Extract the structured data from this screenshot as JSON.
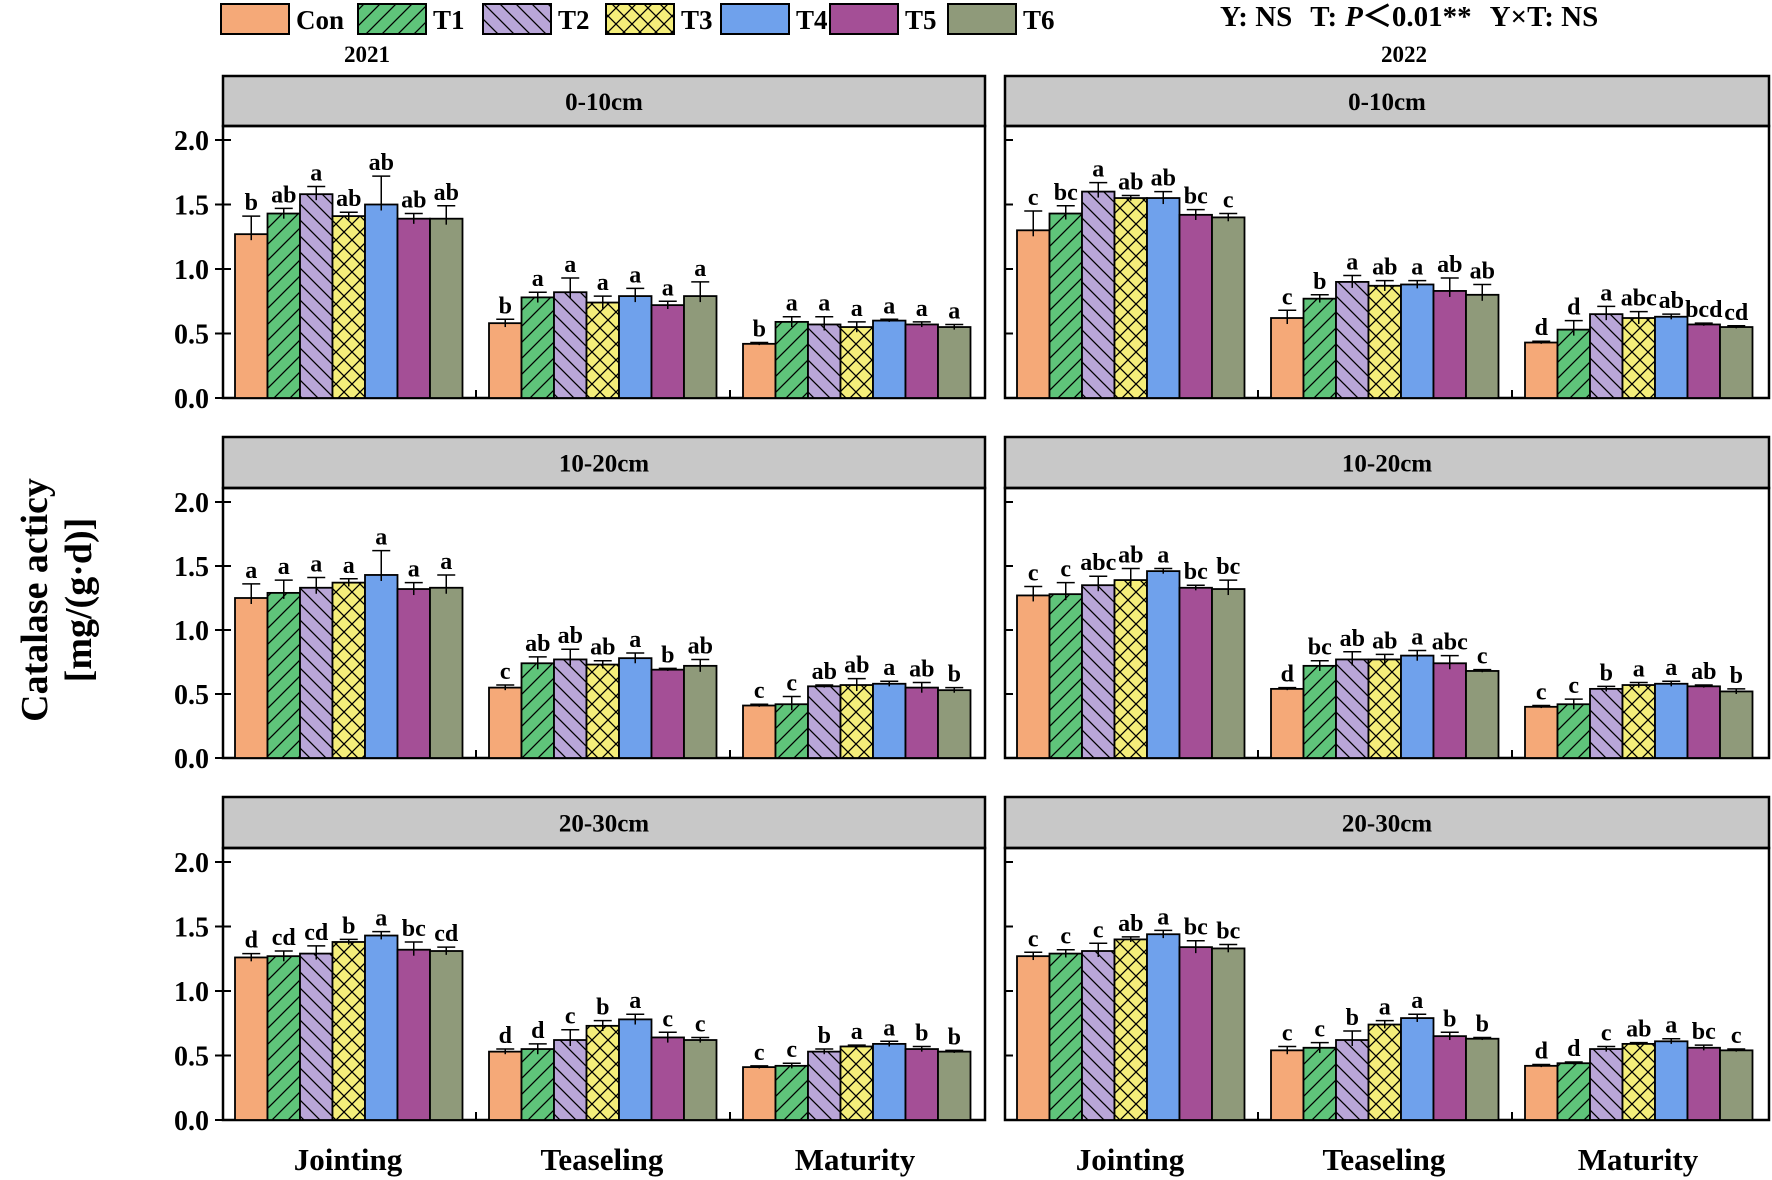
{
  "legend": [
    {
      "name": "Con",
      "color": "#f5a978",
      "pattern": "none"
    },
    {
      "name": "T1",
      "color": "#5fc47a",
      "pattern": "fslash"
    },
    {
      "name": "T2",
      "color": "#b9a6d8",
      "pattern": "bslash"
    },
    {
      "name": "T3",
      "color": "#f5ee7a",
      "pattern": "cross"
    },
    {
      "name": "T4",
      "color": "#6fa1ec",
      "pattern": "none"
    },
    {
      "name": "T5",
      "color": "#a44f96",
      "pattern": "none"
    },
    {
      "name": "T6",
      "color": "#8f9a7a",
      "pattern": "none"
    }
  ],
  "stats_line": {
    "y": "Y: NS",
    "t_prefix": "T:",
    "t_p": "P",
    "t_rest": "＜0.01**",
    "yxt": "Y×T: NS"
  },
  "years": [
    "2021",
    "2022"
  ],
  "ylabel_line1": "Catalase acticy",
  "ylabel_line2": "[mg/(g·d)]",
  "ytick_labels": [
    "0.0",
    "0.5",
    "1.0",
    "1.5",
    "2.0"
  ],
  "chart_data": {
    "type": "bar",
    "categories": [
      "Jointing",
      "Teaseling",
      "Maturity"
    ],
    "series_names": [
      "Con",
      "T1",
      "T2",
      "T3",
      "T4",
      "T5",
      "T6"
    ],
    "ylim": [
      0,
      2.0
    ],
    "yticks": [
      0.0,
      0.5,
      1.0,
      1.5,
      2.0
    ],
    "panels": [
      {
        "year": "2021",
        "depth": "0-10cm",
        "values": [
          [
            1.27,
            1.43,
            1.58,
            1.41,
            1.5,
            1.39,
            1.39
          ],
          [
            0.58,
            0.78,
            0.82,
            0.74,
            0.79,
            0.72,
            0.79
          ],
          [
            0.42,
            0.59,
            0.57,
            0.55,
            0.6,
            0.57,
            0.55
          ]
        ],
        "errors": [
          [
            0.14,
            0.04,
            0.06,
            0.03,
            0.22,
            0.04,
            0.1
          ],
          [
            0.03,
            0.04,
            0.11,
            0.05,
            0.06,
            0.03,
            0.11
          ],
          [
            0.01,
            0.04,
            0.06,
            0.04,
            0.01,
            0.02,
            0.02
          ]
        ],
        "letters": [
          [
            "b",
            "ab",
            "a",
            "ab",
            "ab",
            "ab",
            "ab"
          ],
          [
            "b",
            "a",
            "a",
            "a",
            "a",
            "a",
            "a"
          ],
          [
            "b",
            "a",
            "a",
            "a",
            "a",
            "a",
            "a"
          ]
        ]
      },
      {
        "year": "2022",
        "depth": "0-10cm",
        "values": [
          [
            1.3,
            1.43,
            1.6,
            1.55,
            1.55,
            1.42,
            1.4
          ],
          [
            0.62,
            0.77,
            0.9,
            0.87,
            0.88,
            0.83,
            0.8
          ],
          [
            0.43,
            0.53,
            0.65,
            0.62,
            0.63,
            0.57,
            0.55
          ]
        ],
        "errors": [
          [
            0.15,
            0.06,
            0.07,
            0.02,
            0.05,
            0.04,
            0.03
          ],
          [
            0.06,
            0.03,
            0.05,
            0.04,
            0.03,
            0.1,
            0.08
          ],
          [
            0.01,
            0.07,
            0.06,
            0.05,
            0.02,
            0.01,
            0.01
          ]
        ],
        "letters": [
          [
            "c",
            "bc",
            "a",
            "ab",
            "ab",
            "bc",
            "c"
          ],
          [
            "c",
            "b",
            "a",
            "ab",
            "a",
            "ab",
            "ab"
          ],
          [
            "d",
            "d",
            "a",
            "abc",
            "ab",
            "bcd",
            "cd"
          ]
        ]
      },
      {
        "year": "2021",
        "depth": "10-20cm",
        "values": [
          [
            1.25,
            1.29,
            1.33,
            1.37,
            1.43,
            1.32,
            1.33
          ],
          [
            0.55,
            0.74,
            0.77,
            0.73,
            0.78,
            0.69,
            0.72
          ],
          [
            0.41,
            0.42,
            0.56,
            0.57,
            0.58,
            0.55,
            0.53
          ]
        ],
        "errors": [
          [
            0.11,
            0.1,
            0.08,
            0.03,
            0.19,
            0.05,
            0.1
          ],
          [
            0.02,
            0.05,
            0.08,
            0.03,
            0.04,
            0.01,
            0.05
          ],
          [
            0.01,
            0.06,
            0.01,
            0.05,
            0.02,
            0.04,
            0.02
          ]
        ],
        "letters": [
          [
            "a",
            "a",
            "a",
            "a",
            "a",
            "a",
            "a"
          ],
          [
            "c",
            "ab",
            "ab",
            "ab",
            "a",
            "b",
            "ab"
          ],
          [
            "c",
            "c",
            "ab",
            "ab",
            "a",
            "ab",
            "b"
          ]
        ]
      },
      {
        "year": "2022",
        "depth": "10-20cm",
        "values": [
          [
            1.27,
            1.28,
            1.35,
            1.39,
            1.46,
            1.33,
            1.32
          ],
          [
            0.54,
            0.72,
            0.77,
            0.77,
            0.8,
            0.74,
            0.68
          ],
          [
            0.4,
            0.42,
            0.54,
            0.57,
            0.58,
            0.56,
            0.52
          ]
        ],
        "errors": [
          [
            0.07,
            0.09,
            0.07,
            0.09,
            0.02,
            0.02,
            0.07
          ],
          [
            0.01,
            0.04,
            0.06,
            0.04,
            0.04,
            0.06,
            0.01
          ],
          [
            0.01,
            0.04,
            0.02,
            0.02,
            0.02,
            0.01,
            0.02
          ]
        ],
        "letters": [
          [
            "c",
            "c",
            "abc",
            "ab",
            "a",
            "bc",
            "bc"
          ],
          [
            "d",
            "bc",
            "ab",
            "ab",
            "a",
            "abc",
            "c"
          ],
          [
            "c",
            "c",
            "b",
            "a",
            "a",
            "ab",
            "b"
          ]
        ]
      },
      {
        "year": "2021",
        "depth": "20-30cm",
        "values": [
          [
            1.26,
            1.27,
            1.29,
            1.38,
            1.43,
            1.32,
            1.31
          ],
          [
            0.53,
            0.55,
            0.62,
            0.73,
            0.78,
            0.64,
            0.62
          ],
          [
            0.41,
            0.42,
            0.53,
            0.57,
            0.59,
            0.55,
            0.53
          ]
        ],
        "errors": [
          [
            0.03,
            0.04,
            0.06,
            0.02,
            0.03,
            0.06,
            0.03
          ],
          [
            0.02,
            0.04,
            0.08,
            0.04,
            0.04,
            0.04,
            0.02
          ],
          [
            0.01,
            0.02,
            0.02,
            0.01,
            0.02,
            0.02,
            0.01
          ]
        ],
        "letters": [
          [
            "d",
            "cd",
            "cd",
            "b",
            "a",
            "bc",
            "cd"
          ],
          [
            "d",
            "d",
            "c",
            "b",
            "a",
            "c",
            "c"
          ],
          [
            "c",
            "c",
            "b",
            "a",
            "a",
            "b",
            "b"
          ]
        ]
      },
      {
        "year": "2022",
        "depth": "20-30cm",
        "values": [
          [
            1.27,
            1.29,
            1.31,
            1.4,
            1.44,
            1.34,
            1.33
          ],
          [
            0.54,
            0.56,
            0.62,
            0.74,
            0.79,
            0.65,
            0.63
          ],
          [
            0.42,
            0.44,
            0.55,
            0.59,
            0.61,
            0.56,
            0.54
          ]
        ],
        "errors": [
          [
            0.03,
            0.03,
            0.06,
            0.02,
            0.03,
            0.05,
            0.03
          ],
          [
            0.03,
            0.04,
            0.07,
            0.03,
            0.03,
            0.03,
            0.01
          ],
          [
            0.01,
            0.01,
            0.02,
            0.01,
            0.02,
            0.02,
            0.01
          ]
        ],
        "letters": [
          [
            "c",
            "c",
            "c",
            "ab",
            "a",
            "bc",
            "bc"
          ],
          [
            "c",
            "c",
            "b",
            "a",
            "a",
            "b",
            "b"
          ],
          [
            "d",
            "d",
            "c",
            "ab",
            "a",
            "bc",
            "c"
          ]
        ]
      }
    ]
  }
}
